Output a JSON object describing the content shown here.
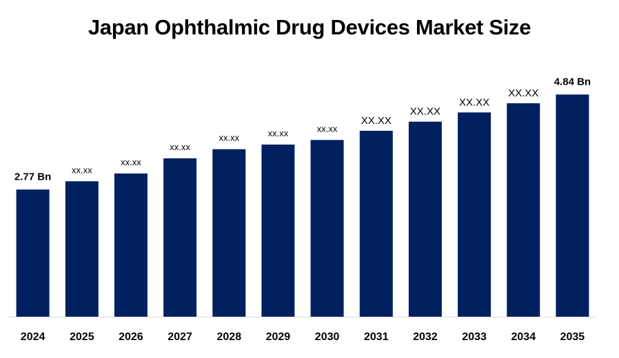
{
  "chart_data": {
    "type": "bar",
    "title": "Japan Ophthalmic Drug Devices Market Size",
    "xlabel": "",
    "ylabel": "",
    "categories": [
      "2024",
      "2025",
      "2026",
      "2027",
      "2028",
      "2029",
      "2030",
      "2031",
      "2032",
      "2033",
      "2034",
      "2035"
    ],
    "values": [
      2.77,
      2.95,
      3.12,
      3.45,
      3.65,
      3.75,
      3.85,
      4.05,
      4.25,
      4.45,
      4.65,
      4.84
    ],
    "data_labels": [
      "2.77 Bn",
      "xx.xx",
      "xx.xx",
      "xx.xx",
      "xx.xx",
      "xx.xx",
      "xx.xx",
      "XX.XX",
      "XX.XX",
      "XX.XX",
      "XX.XX",
      "4.84 Bn"
    ],
    "ylim": [
      0,
      5.4
    ],
    "grid": false,
    "legend": "none",
    "bar_color": "#002060",
    "axis_color": "#d9d9d9"
  }
}
